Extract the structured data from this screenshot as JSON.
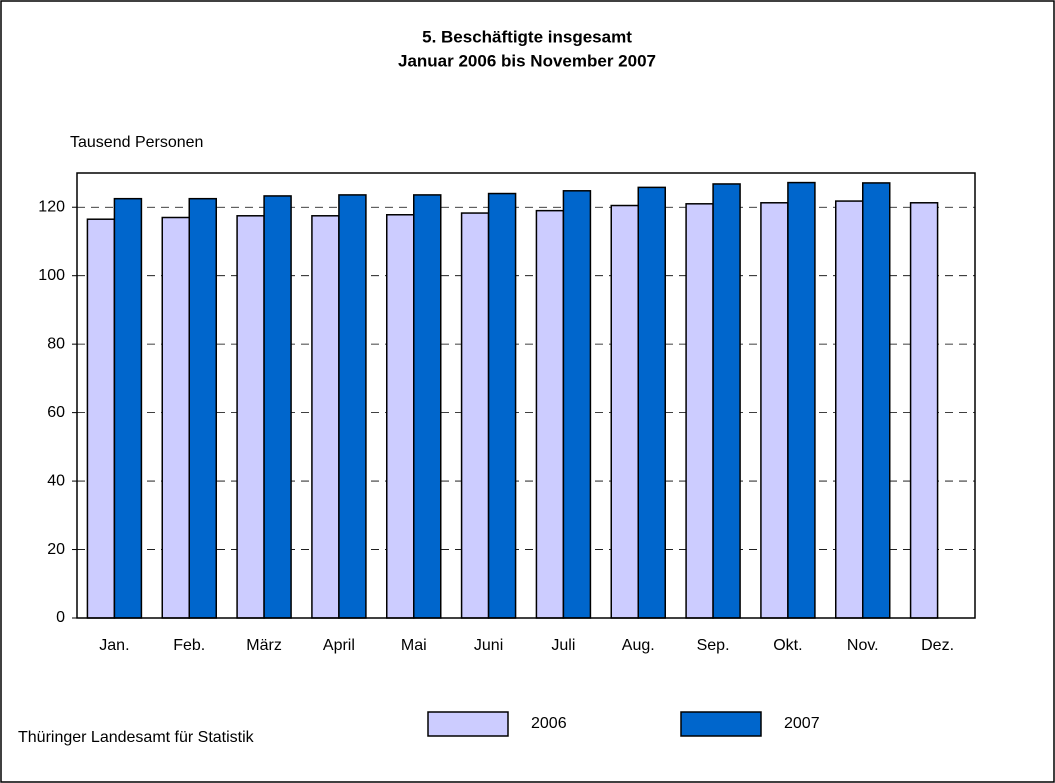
{
  "chart_data": {
    "type": "bar",
    "title": "5. Beschäftigte insgesamt",
    "subtitle": "Januar 2006 bis November 2007",
    "y_label": "Tausend Personen",
    "source": "Thüringer Landesamt für Statistik",
    "categories": [
      "Jan.",
      "Feb.",
      "März",
      "April",
      "Mai",
      "Juni",
      "Juli",
      "Aug.",
      "Sep.",
      "Okt.",
      "Nov.",
      "Dez."
    ],
    "series": [
      {
        "name": "2006",
        "color": "#ccccff",
        "values": [
          116.5,
          117,
          117.5,
          117.5,
          117.8,
          118.3,
          119,
          120.5,
          121,
          121.3,
          121.8,
          121.3
        ]
      },
      {
        "name": "2007",
        "color": "#0066cc",
        "values": [
          122.5,
          122.5,
          123.3,
          123.6,
          123.6,
          124,
          124.8,
          125.8,
          126.8,
          127.2,
          127.1,
          null
        ]
      }
    ],
    "ylim": [
      0,
      130
    ],
    "yticks": [
      0,
      20,
      40,
      60,
      80,
      100,
      120
    ],
    "grid": true
  }
}
